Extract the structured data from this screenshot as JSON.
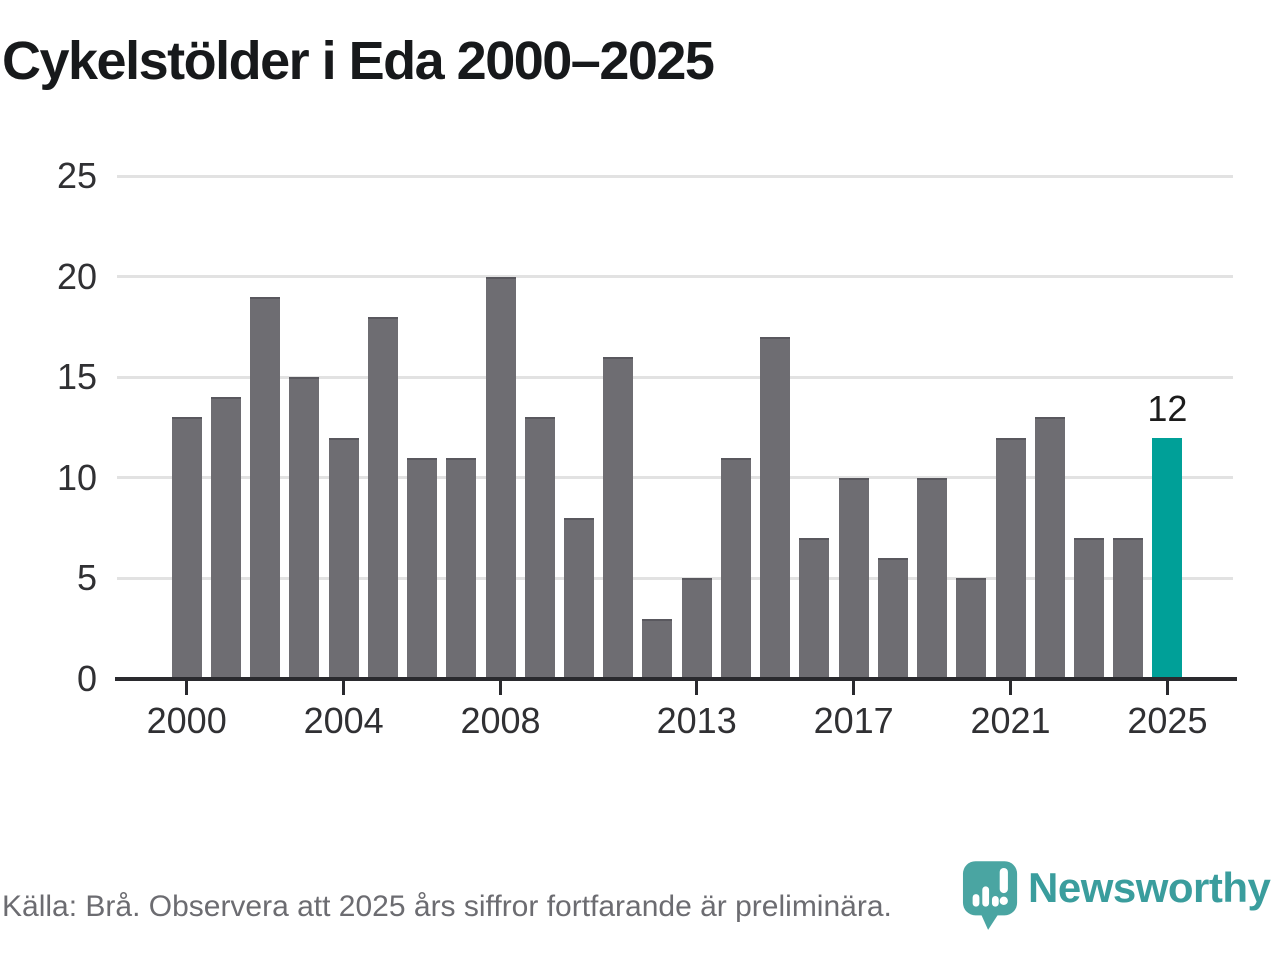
{
  "title": "Cykelstölder i Eda 2000–2025",
  "footer": {
    "source_note": "Källa: Brå. Observera att 2025 års siffror fortfarande är preliminära.",
    "brand": "Newsworthy"
  },
  "colors": {
    "title_text": "#17191b",
    "tick_text": "#303033",
    "footer_text": "#6c6c71",
    "bar": "#6e6d72",
    "bar_top_edge": "#59585e",
    "highlight": "#00a098",
    "gridline": "#e2e2e2",
    "axis": "#2a2a2e",
    "brand_teal": "#3a9d9d",
    "logo_teal": "#4aa5a2"
  },
  "chart_data": {
    "type": "bar",
    "title": "Cykelstölder i Eda 2000–2025",
    "categories": [
      2000,
      2001,
      2002,
      2003,
      2004,
      2005,
      2006,
      2007,
      2008,
      2009,
      2010,
      2011,
      2012,
      2013,
      2014,
      2015,
      2016,
      2017,
      2018,
      2019,
      2020,
      2021,
      2022,
      2023,
      2024,
      2025
    ],
    "values": [
      13,
      14,
      19,
      15,
      12,
      18,
      11,
      11,
      20,
      13,
      8,
      16,
      3,
      5,
      11,
      17,
      7,
      10,
      6,
      10,
      5,
      12,
      13,
      7,
      7,
      12
    ],
    "highlight_year": 2025,
    "highlight_value_label": "12",
    "x_tick_labels": [
      "2000",
      "2004",
      "2008",
      "2013",
      "2017",
      "2021",
      "2025"
    ],
    "y_ticks": [
      0,
      5,
      10,
      15,
      20,
      25
    ],
    "ylim": [
      0,
      25
    ],
    "xlabel": "",
    "ylabel": "",
    "grid": "horizontal-only",
    "legend": "none"
  }
}
